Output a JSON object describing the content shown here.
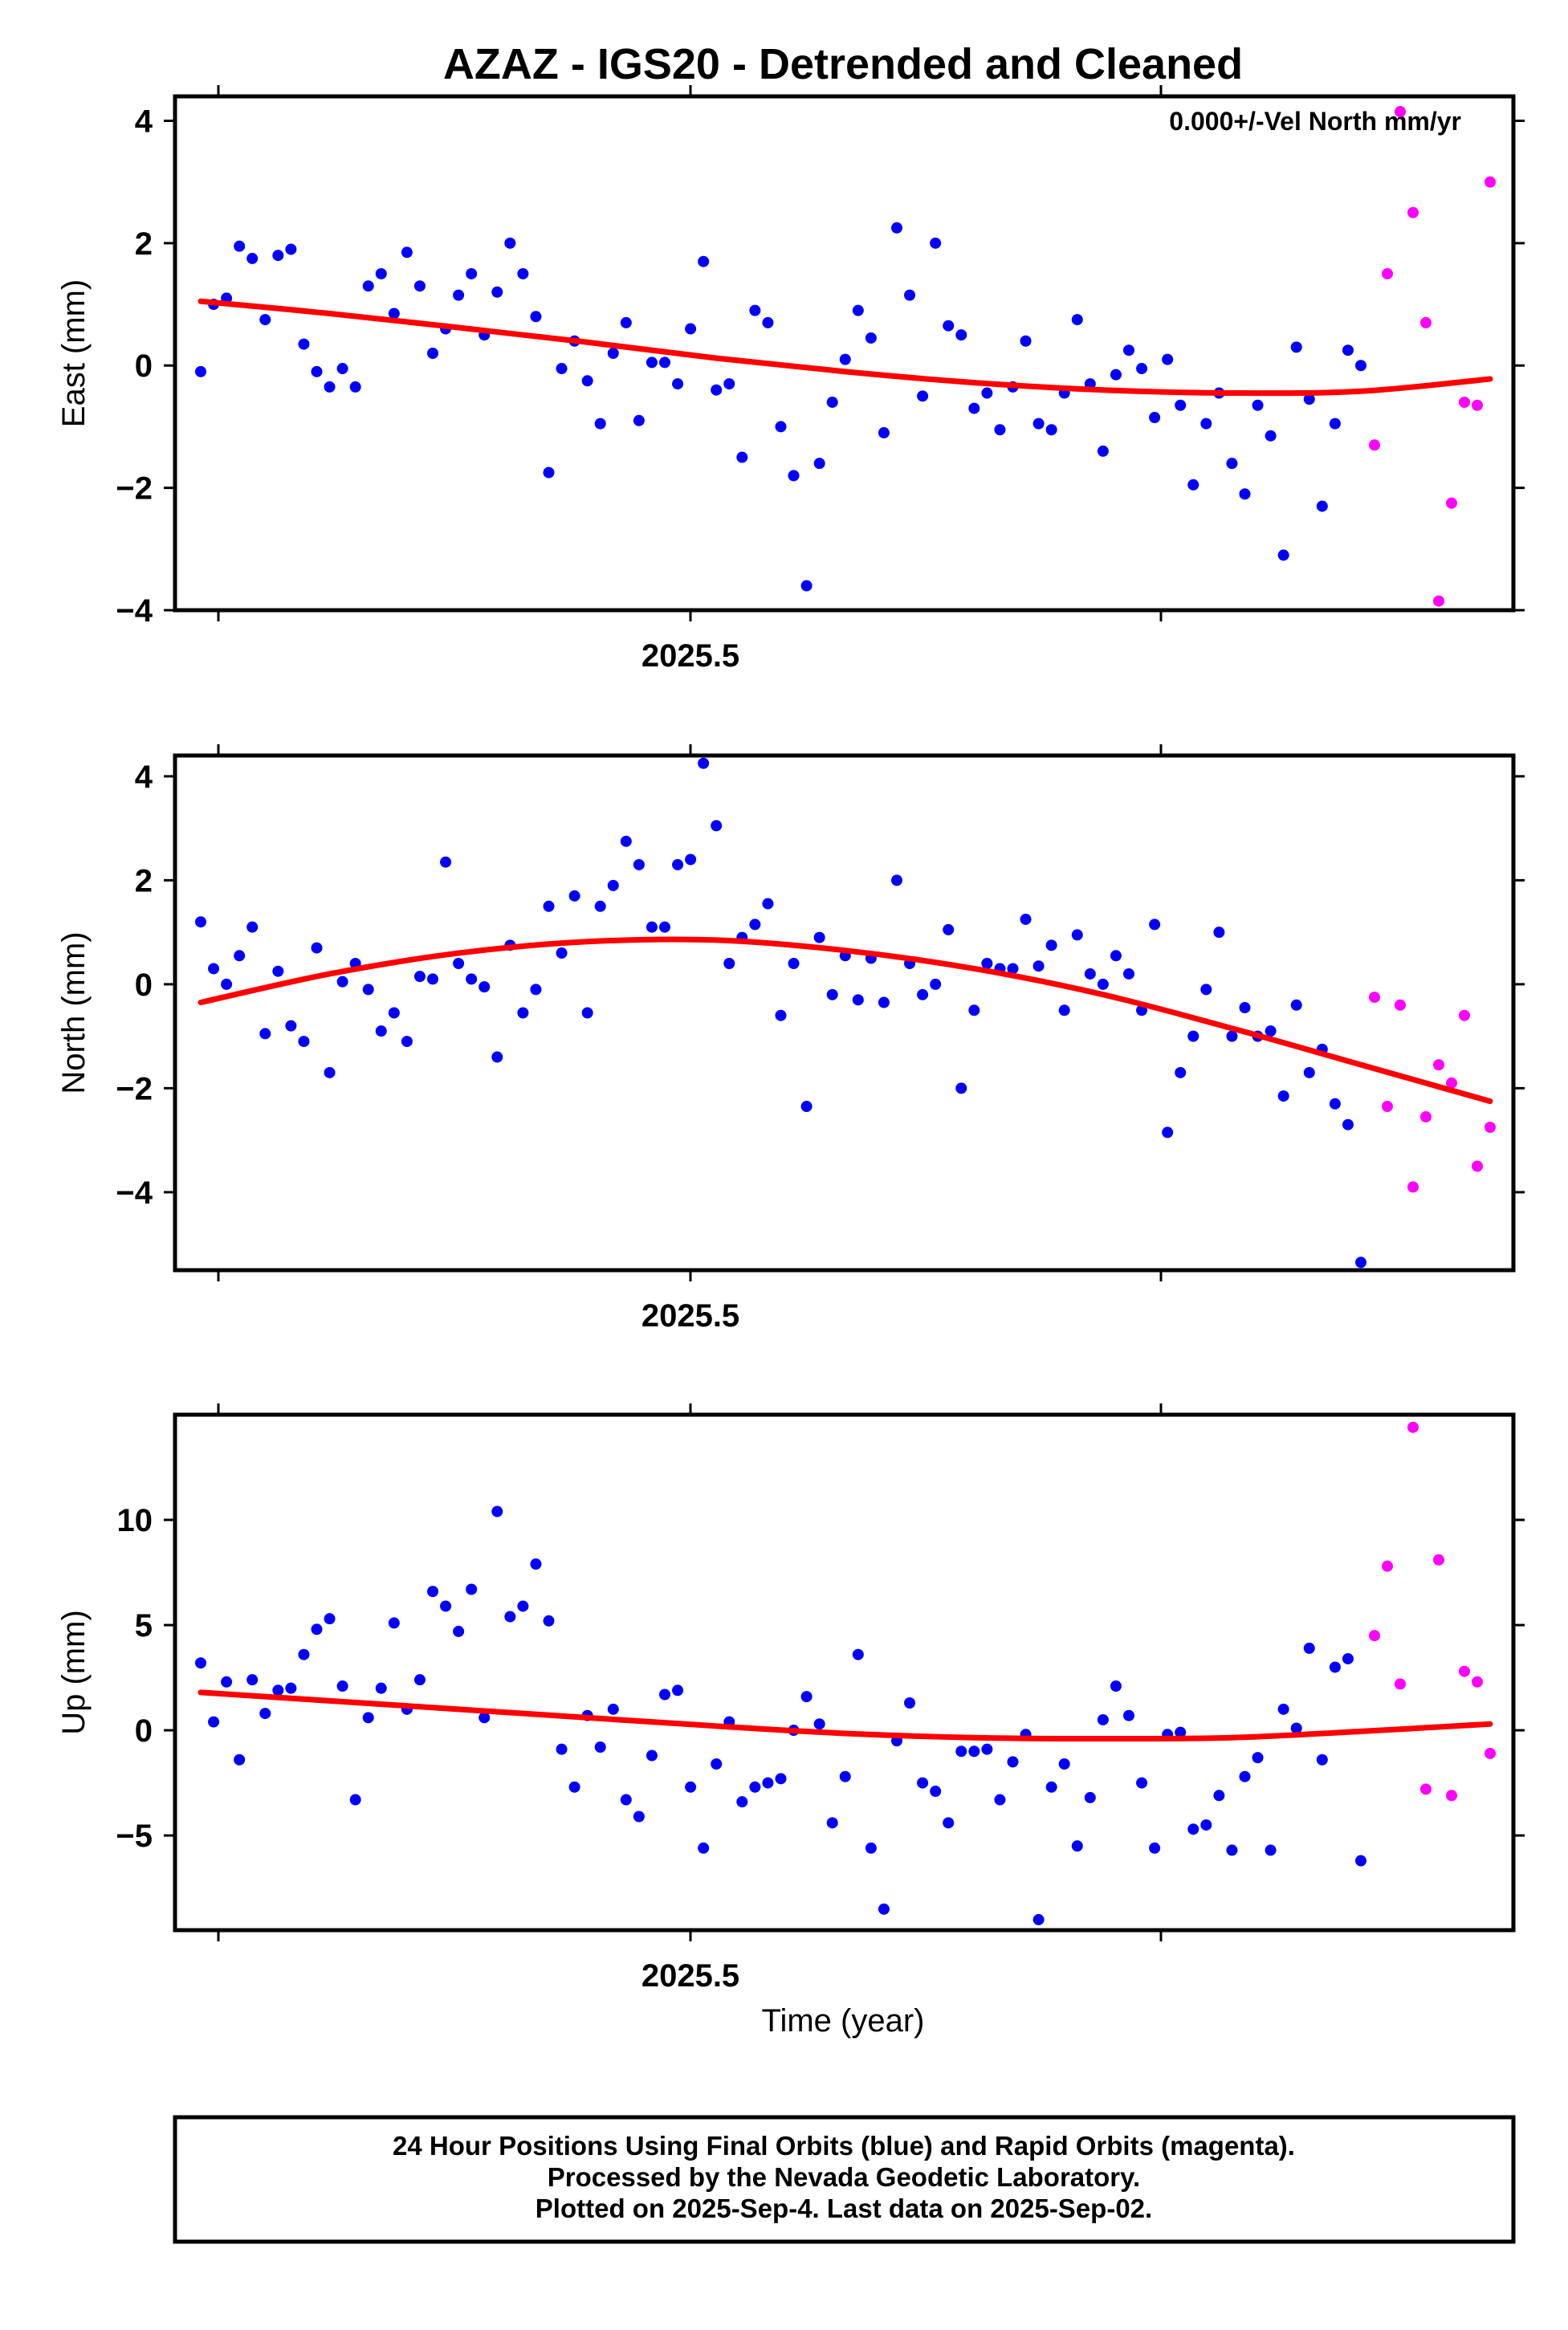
{
  "chart_data": {
    "title": "AZAZ - IGS20 - Detrended and Cleaned",
    "xlabel": "Time (year)",
    "x_tick_label": "2025.5",
    "annotation": "0.000+/-Vel North mm/yr",
    "series_colors": {
      "final": "#0000ff",
      "rapid": "#ff00ff",
      "fit": "#ff0000"
    },
    "panels": [
      {
        "type": "scatter",
        "ylabel": "East (mm)",
        "ylim": [
          -4,
          4.4
        ],
        "yticks": [
          -4,
          -2,
          0,
          2,
          4
        ],
        "ytick_labels": [
          "−4",
          "−2",
          "0",
          "2",
          "4"
        ],
        "final": [
          -0.1,
          1.0,
          1.1,
          1.95,
          1.75,
          0.75,
          1.8,
          1.9,
          0.35,
          -0.1,
          -0.35,
          -0.05,
          -0.35,
          1.3,
          1.5,
          0.85,
          1.85,
          1.3,
          0.2,
          0.6,
          1.15,
          1.5,
          0.5,
          1.2,
          2.0,
          1.5,
          0.8,
          -1.75,
          -0.05,
          0.4,
          -0.25,
          -0.95,
          0.2,
          0.7,
          -0.9,
          0.05,
          0.05,
          -0.3,
          0.6,
          1.7,
          -0.4,
          -0.3,
          -1.5,
          0.9,
          0.7,
          -1.0,
          -1.8,
          -3.6,
          -1.6,
          -0.6,
          0.1,
          0.9,
          0.45,
          -1.1,
          2.25,
          1.15,
          -0.5,
          2.0,
          0.65,
          0.5,
          -0.7,
          -0.45,
          -1.05,
          -0.35,
          0.4,
          -0.95,
          -1.05,
          -0.45,
          0.75,
          -0.3,
          -1.4,
          -0.15,
          0.25,
          -0.05,
          -0.85,
          0.1,
          -0.65,
          -1.95,
          -0.95,
          -0.45,
          -1.6,
          -2.1,
          -0.65,
          -1.15,
          -3.1,
          0.3,
          -0.55,
          -2.3,
          -0.95,
          0.25,
          0.0
        ],
        "rapid": [
          -1.3,
          1.5,
          4.15,
          2.5,
          0.7,
          -3.85,
          -2.25,
          -0.6,
          -0.65,
          3.0
        ],
        "fit": [
          1.05,
          0.85,
          0.62,
          0.38,
          0.12,
          -0.1,
          -0.28,
          -0.4,
          -0.45,
          -0.42,
          -0.22
        ]
      },
      {
        "type": "scatter",
        "ylabel": "North (mm)",
        "ylim": [
          -5.5,
          4.4
        ],
        "yticks": [
          -4,
          -2,
          0,
          2,
          4
        ],
        "ytick_labels": [
          "−4",
          "−2",
          "0",
          "2",
          "4"
        ],
        "final": [
          1.2,
          0.3,
          0.0,
          0.55,
          1.1,
          -0.95,
          0.25,
          -0.8,
          -1.1,
          0.7,
          -1.7,
          0.05,
          0.4,
          -0.1,
          -0.9,
          -0.55,
          -1.1,
          0.15,
          0.1,
          2.35,
          0.4,
          0.1,
          -0.05,
          -1.4,
          0.75,
          -0.55,
          -0.1,
          1.5,
          0.6,
          1.7,
          -0.55,
          1.5,
          1.9,
          2.75,
          2.3,
          1.1,
          1.1,
          2.3,
          2.4,
          4.25,
          3.05,
          0.4,
          0.9,
          1.15,
          1.55,
          -0.6,
          0.4,
          -2.35,
          0.9,
          -0.2,
          0.55,
          -0.3,
          0.5,
          -0.35,
          2.0,
          0.4,
          -0.2,
          0.0,
          1.05,
          -2.0,
          -0.5,
          0.4,
          0.3,
          0.3,
          1.25,
          0.35,
          0.75,
          -0.5,
          0.95,
          0.2,
          0.0,
          0.55,
          0.2,
          -0.5,
          1.15,
          -2.85,
          -1.7,
          -1.0,
          -0.1,
          1.0,
          -1.0,
          -0.45,
          -1.0,
          -0.9,
          -2.15,
          -0.4,
          -1.7,
          -1.25,
          -2.3,
          -2.7,
          -5.35
        ],
        "rapid": [
          -0.25,
          -2.35,
          -0.4,
          -3.9,
          -2.55,
          -1.55,
          -1.9,
          -0.6,
          -3.5,
          -2.75
        ],
        "fit": [
          -0.35,
          0.2,
          0.6,
          0.82,
          0.85,
          0.65,
          0.3,
          -0.2,
          -0.85,
          -1.55,
          -2.25
        ]
      },
      {
        "type": "scatter",
        "ylabel": "Up (mm)",
        "ylim": [
          -9.5,
          15
        ],
        "yticks": [
          -5,
          0,
          5,
          10
        ],
        "ytick_labels": [
          "−5",
          "0",
          "5",
          "10"
        ],
        "final": [
          3.2,
          0.4,
          2.3,
          -1.4,
          2.4,
          0.8,
          1.9,
          2.0,
          3.6,
          4.8,
          5.3,
          2.1,
          -3.3,
          0.6,
          2.0,
          5.1,
          1.0,
          2.4,
          6.6,
          5.9,
          4.7,
          6.7,
          0.6,
          10.4,
          5.4,
          5.9,
          7.9,
          5.2,
          -0.9,
          -2.7,
          0.7,
          -0.8,
          1.0,
          -3.3,
          -4.1,
          -1.2,
          1.7,
          1.9,
          -2.7,
          -5.6,
          -1.6,
          0.4,
          -3.4,
          -2.7,
          -2.5,
          -2.3,
          0.0,
          1.6,
          0.3,
          -4.4,
          -2.2,
          3.6,
          -5.6,
          -8.5,
          -0.5,
          1.3,
          -2.5,
          -2.9,
          -4.4,
          -1.0,
          -1.0,
          -0.9,
          -3.3,
          -1.5,
          -0.2,
          -9.0,
          -2.7,
          -1.6,
          -5.5,
          -3.2,
          0.5,
          2.1,
          0.7,
          -2.5,
          -5.6,
          -0.2,
          -0.1,
          -4.7,
          -4.5,
          -3.1,
          -5.7,
          -2.2,
          -1.3,
          -5.7,
          1.0,
          0.1,
          3.9,
          -1.4,
          3.0,
          3.4,
          -6.2
        ],
        "rapid": [
          4.5,
          7.8,
          2.2,
          14.4,
          -2.8,
          8.1,
          -3.1,
          2.8,
          2.3,
          -1.1
        ],
        "fit": [
          1.8,
          1.4,
          1.0,
          0.6,
          0.2,
          -0.15,
          -0.35,
          -0.4,
          -0.35,
          -0.05,
          0.3
        ]
      }
    ]
  },
  "footer": {
    "line1": "24 Hour Positions Using Final Orbits (blue) and Rapid Orbits (magenta).",
    "line2": "Processed by the Nevada Geodetic Laboratory.",
    "line3": "Plotted on 2025-Sep-4. Last data on 2025-Sep-02."
  }
}
